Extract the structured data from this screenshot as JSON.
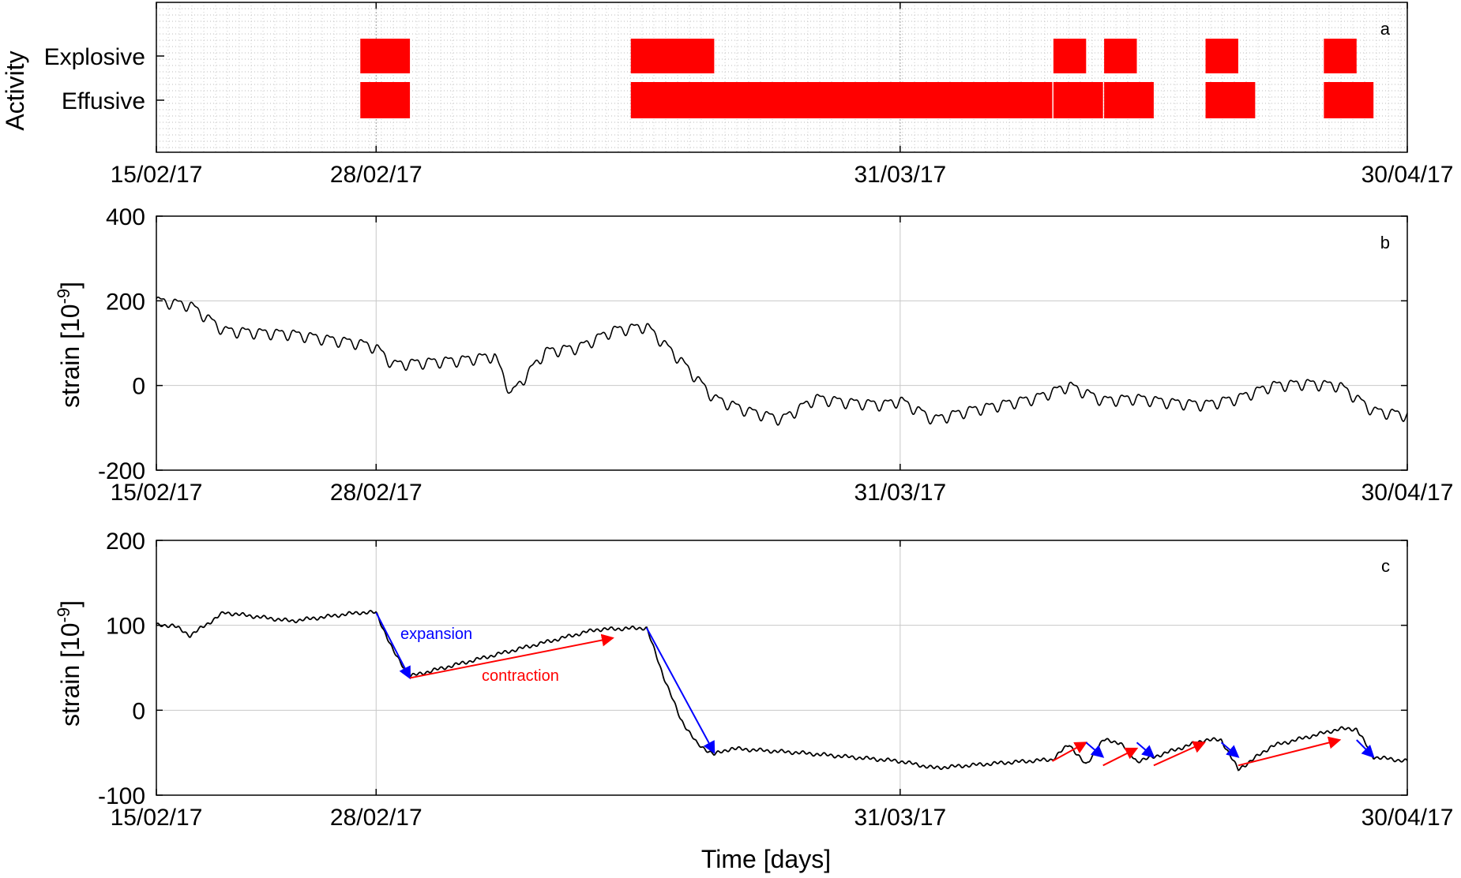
{
  "xlabel": "Time [days]",
  "x_ticks": [
    "15/02/17",
    "28/02/17",
    "31/03/17",
    "30/04/17"
  ],
  "colors": {
    "activity": "#ff0000",
    "trace": "#000000",
    "expansion": "#0000ff",
    "contraction": "#ff0000",
    "grid": "#c8c8c8"
  },
  "chart_data": [
    {
      "panel": "a",
      "type": "bar",
      "orientation": "timeline",
      "ylabel": "Activity",
      "categories": [
        "Explosive",
        "Effusive"
      ],
      "x_range": [
        "15/02/17",
        "30/04/17"
      ],
      "series": [
        {
          "name": "Explosive",
          "intervals": [
            [
              "28/02/17",
              "02/03/17"
            ],
            [
              "16/03/17",
              "20/03/17"
            ],
            [
              "10/04/17",
              "11/04/17"
            ],
            [
              "13/04/17",
              "14/04/17"
            ],
            [
              "19/04/17",
              "20/04/17"
            ],
            [
              "26/04/17",
              "27/04/17"
            ]
          ]
        },
        {
          "name": "Effusive",
          "intervals": [
            [
              "28/02/17",
              "02/03/17"
            ],
            [
              "16/03/17",
              "09/04/17"
            ],
            [
              "10/04/17",
              "12/04/17"
            ],
            [
              "13/04/17",
              "15/04/17"
            ],
            [
              "19/04/17",
              "21/04/17"
            ],
            [
              "26/04/17",
              "28/04/17"
            ]
          ]
        }
      ]
    },
    {
      "panel": "b",
      "type": "line",
      "ylabel": "strain [10",
      "ylabel_exp": "-9",
      "ylabel_end": "]",
      "ylim": [
        -200,
        400
      ],
      "y_ticks": [
        "-200",
        "0",
        "200",
        "400"
      ],
      "x": [
        "15/02/17",
        "17/02/17",
        "19/02/17",
        "21/02/17",
        "23/02/17",
        "25/02/17",
        "27/02/17",
        "28/02/17",
        "01/03/17",
        "03/03/17",
        "05/03/17",
        "07/03/17",
        "08/03/17",
        "10/03/17",
        "12/03/17",
        "14/03/17",
        "16/03/17",
        "18/03/17",
        "20/03/17",
        "22/03/17",
        "24/03/17",
        "26/03/17",
        "28/03/17",
        "30/03/17",
        "31/03/17",
        "02/04/17",
        "04/04/17",
        "06/04/17",
        "08/04/17",
        "10/04/17",
        "12/04/17",
        "14/04/17",
        "16/04/17",
        "18/04/17",
        "20/04/17",
        "22/04/17",
        "24/04/17",
        "26/04/17",
        "28/04/17",
        "30/04/17"
      ],
      "values": [
        200,
        190,
        130,
        125,
        122,
        110,
        100,
        90,
        50,
        55,
        60,
        70,
        -20,
        80,
        90,
        130,
        140,
        60,
        -30,
        -60,
        -80,
        -30,
        -40,
        -45,
        -35,
        -80,
        -60,
        -45,
        -30,
        0,
        -35,
        -30,
        -40,
        -45,
        -30,
        0,
        5,
        0,
        -60,
        -70
      ],
      "daily_oscillation_amplitude": 20
    },
    {
      "panel": "c",
      "type": "line",
      "ylabel": "strain [10",
      "ylabel_exp": "-9",
      "ylabel_end": "]",
      "ylim": [
        -100,
        200
      ],
      "y_ticks": [
        "-100",
        "0",
        "100",
        "200"
      ],
      "x": [
        "15/02/17",
        "16/02/17",
        "17/02/17",
        "19/02/17",
        "23/02/17",
        "27/02/17",
        "28/02/17",
        "01/03/17",
        "02/03/17",
        "06/03/17",
        "10/03/17",
        "13/03/17",
        "16/03/17",
        "17/03/17",
        "18/03/17",
        "19/03/17",
        "20/03/17",
        "21/03/17",
        "25/03/17",
        "31/03/17",
        "02/04/17",
        "06/04/17",
        "09/04/17",
        "10/04/17",
        "11/04/17",
        "12/04/17",
        "13/04/17",
        "14/04/17",
        "15/04/17",
        "18/04/17",
        "19/04/17",
        "20/04/17",
        "22/04/17",
        "26/04/17",
        "27/04/17",
        "28/04/17",
        "30/04/17"
      ],
      "values": [
        100,
        100,
        88,
        115,
        105,
        115,
        115,
        70,
        40,
        60,
        80,
        95,
        97,
        40,
        -10,
        -40,
        -52,
        -45,
        -50,
        -60,
        -68,
        -62,
        -58,
        -40,
        -65,
        -35,
        -38,
        -60,
        -55,
        -35,
        -35,
        -70,
        -42,
        -22,
        -22,
        -55,
        -60
      ],
      "annotations": [
        {
          "text": "expansion",
          "color": "#0000ff"
        },
        {
          "text": "contraction",
          "color": "#ff0000"
        }
      ],
      "arrows": [
        {
          "type": "expansion",
          "from": [
            "28/02/17",
            115
          ],
          "to": [
            "02/03/17",
            38
          ]
        },
        {
          "type": "contraction",
          "from": [
            "02/03/17",
            38
          ],
          "to": [
            "14/03/17",
            85
          ]
        },
        {
          "type": "expansion",
          "from": [
            "16/03/17",
            97
          ],
          "to": [
            "20/03/17",
            -50
          ]
        },
        {
          "type": "contraction",
          "from": [
            "09/04/17",
            -60
          ],
          "to": [
            "11/04/17",
            -38
          ]
        },
        {
          "type": "expansion",
          "from": [
            "11/04/17",
            -38
          ],
          "to": [
            "12/04/17",
            -55
          ]
        },
        {
          "type": "contraction",
          "from": [
            "12/04/17",
            -65
          ],
          "to": [
            "14/04/17",
            -45
          ]
        },
        {
          "type": "expansion",
          "from": [
            "14/04/17",
            -38
          ],
          "to": [
            "15/04/17",
            -55
          ]
        },
        {
          "type": "contraction",
          "from": [
            "15/04/17",
            -65
          ],
          "to": [
            "18/04/17",
            -38
          ]
        },
        {
          "type": "expansion",
          "from": [
            "19/04/17",
            -38
          ],
          "to": [
            "20/04/17",
            -55
          ]
        },
        {
          "type": "contraction",
          "from": [
            "20/04/17",
            -65
          ],
          "to": [
            "26/04/17",
            -35
          ]
        },
        {
          "type": "expansion",
          "from": [
            "27/04/17",
            -35
          ],
          "to": [
            "28/04/17",
            -55
          ]
        }
      ]
    }
  ],
  "panel_labels": [
    "a",
    "b",
    "c"
  ]
}
